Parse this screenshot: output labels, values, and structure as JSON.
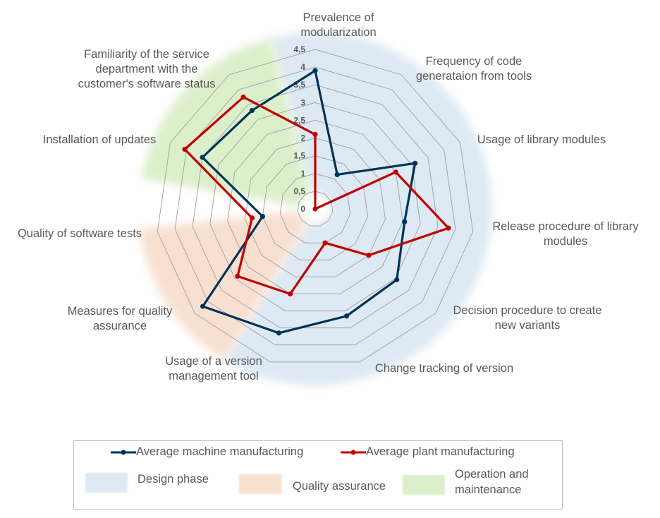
{
  "chart_data": {
    "type": "radar",
    "categories": [
      [
        "Prevalence of",
        "modularization"
      ],
      [
        "Frequency of code",
        "generataion from tools"
      ],
      [
        "Usage of library modules"
      ],
      [
        "Release procedure of library",
        "modules"
      ],
      [
        "Decision procedure to create",
        "new variants"
      ],
      [
        "Change tracking of version"
      ],
      [
        "Usage of a version",
        "management tool"
      ],
      [
        "Measures for quality",
        "assurance"
      ],
      [
        "Quality of software tests"
      ],
      [
        "Installation of updates"
      ],
      [
        "Familiarity of the service",
        "department with the",
        "customer's software status"
      ]
    ],
    "rlim": [
      0,
      4.5
    ],
    "ticks": [
      "0",
      "0,5",
      "1",
      "1,5",
      "2",
      "2,5",
      "3",
      "3,5",
      "4",
      "4,5"
    ],
    "series": [
      {
        "name": "Average machine manufacturing",
        "color": "#003359",
        "values": [
          3.9,
          1.15,
          3.1,
          2.55,
          3.05,
          3.15,
          3.65,
          4.2,
          1.5,
          3.5,
          3.3
        ]
      },
      {
        "name": "Average plant manufacturing",
        "color": "#c00000",
        "values": [
          2.1,
          0,
          2.5,
          3.8,
          2.0,
          1.0,
          2.5,
          2.9,
          1.8,
          4.05,
          3.75
        ]
      }
    ],
    "phases": [
      {
        "name": "Design phase",
        "color": "#dde9f3",
        "from_axis": -0.45,
        "to_axis": 6.45
      },
      {
        "name": "Quality assurance",
        "color": "#f8e0d0",
        "from_axis": 6.45,
        "to_axis": 8.05
      },
      {
        "name": "Operation and maintenance",
        "lines": [
          "Operation and",
          "maintenance"
        ],
        "color": "#dcefcb",
        "from_axis": 8.55,
        "to_axis": 10.55
      }
    ],
    "legend_position": "bottom"
  }
}
